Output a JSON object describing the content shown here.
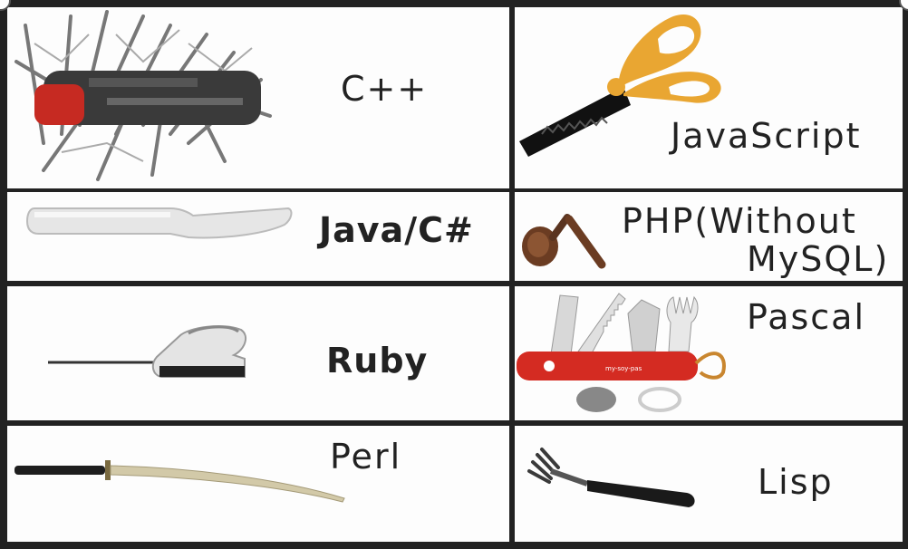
{
  "tools": [
    {
      "id": "cpp",
      "label": "C++",
      "icon": "giant-swiss-army-knife-icon"
    },
    {
      "id": "javascript",
      "label": "JavaScript",
      "icon": "zigzag-scissors-icon"
    },
    {
      "id": "java-csharp",
      "label": "Java/C#",
      "icon": "butter-knife-icon"
    },
    {
      "id": "php",
      "label": "PHP(Without",
      "label2": "MySQL)",
      "icon": "broken-spoon-icon"
    },
    {
      "id": "ruby",
      "label": "Ruby",
      "icon": "electric-knife-icon"
    },
    {
      "id": "pascal",
      "label": "Pascal",
      "icon": "pocket-knife-icon"
    },
    {
      "id": "perl",
      "label": "Perl",
      "icon": "katana-icon"
    },
    {
      "id": "lisp",
      "label": "Lisp",
      "icon": "hand-fork-icon"
    }
  ],
  "colors": {
    "border": "#222222",
    "cell": "#fdfdfd",
    "scissors": "#e9a632",
    "swiss_red": "#d42b22"
  }
}
